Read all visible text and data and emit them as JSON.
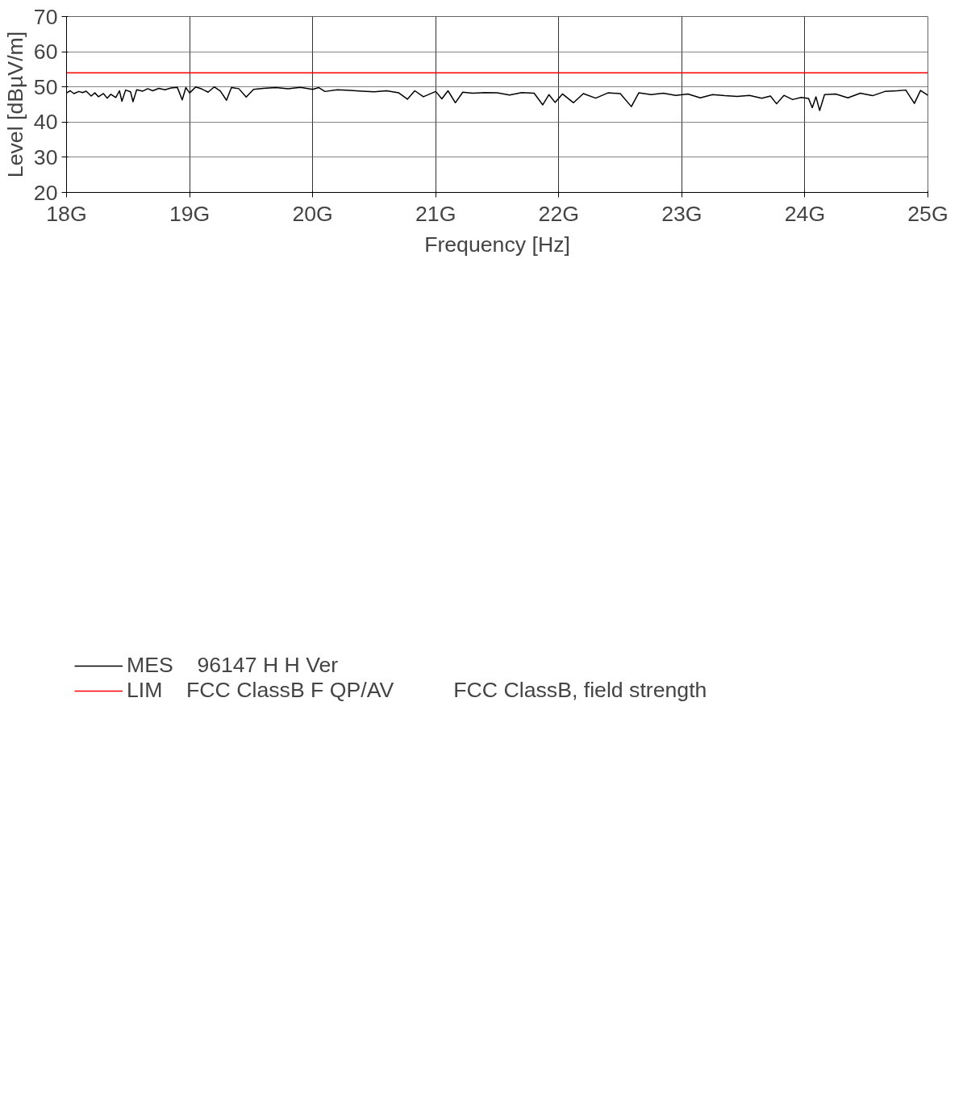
{
  "chart_data": {
    "type": "line",
    "ylabel": "Level [dBµV/m]",
    "xlabel": "Frequency [Hz]",
    "xlim": [
      18,
      25
    ],
    "ylim": [
      20,
      70
    ],
    "xticks": [
      {
        "value": 18,
        "label": "18G"
      },
      {
        "value": 19,
        "label": "19G"
      },
      {
        "value": 20,
        "label": "20G"
      },
      {
        "value": 21,
        "label": "21G"
      },
      {
        "value": 22,
        "label": "22G"
      },
      {
        "value": 23,
        "label": "23G"
      },
      {
        "value": 24,
        "label": "24G"
      },
      {
        "value": 25,
        "label": "25G"
      }
    ],
    "yticks": [
      20,
      30,
      40,
      50,
      60,
      70
    ],
    "grid": true,
    "legend": "bottom",
    "series": [
      {
        "name": "MES    96147 H H Ver",
        "color": "#000000",
        "x": [
          18.0,
          18.03,
          18.06,
          18.1,
          18.13,
          18.16,
          18.2,
          18.23,
          18.26,
          18.3,
          18.33,
          18.36,
          18.4,
          18.43,
          18.45,
          18.48,
          18.52,
          18.54,
          18.57,
          18.62,
          18.66,
          18.7,
          18.75,
          18.8,
          18.85,
          18.9,
          18.94,
          18.97,
          19.0,
          19.05,
          19.1,
          19.15,
          19.2,
          19.25,
          19.3,
          19.34,
          19.4,
          19.46,
          19.52,
          19.6,
          19.7,
          19.8,
          19.9,
          20.0,
          20.05,
          20.1,
          20.2,
          20.3,
          20.4,
          20.5,
          20.6,
          20.7,
          20.77,
          20.83,
          20.9,
          21.0,
          21.05,
          21.1,
          21.16,
          21.22,
          21.3,
          21.4,
          21.5,
          21.6,
          21.7,
          21.8,
          21.87,
          21.92,
          21.97,
          22.03,
          22.12,
          22.2,
          22.3,
          22.4,
          22.5,
          22.59,
          22.65,
          22.75,
          22.85,
          22.95,
          23.05,
          23.15,
          23.25,
          23.35,
          23.45,
          23.55,
          23.65,
          23.72,
          23.77,
          23.83,
          23.9,
          23.97,
          24.03,
          24.06,
          24.09,
          24.12,
          24.16,
          24.25,
          24.35,
          24.45,
          24.55,
          24.65,
          24.75,
          24.82,
          24.89,
          24.94,
          25.0
        ],
        "values": [
          48.3,
          48.9,
          48.1,
          48.7,
          48.4,
          48.8,
          47.4,
          48.3,
          47.2,
          48.1,
          46.8,
          47.9,
          47.0,
          48.9,
          45.9,
          49.1,
          48.6,
          45.8,
          49.2,
          48.8,
          49.5,
          48.9,
          49.6,
          49.2,
          49.7,
          49.9,
          46.3,
          49.8,
          48.3,
          50.0,
          49.4,
          48.5,
          50.0,
          48.8,
          46.2,
          49.8,
          49.5,
          47.1,
          49.3,
          49.6,
          49.8,
          49.5,
          49.9,
          49.3,
          49.8,
          48.7,
          49.2,
          49.0,
          48.8,
          48.6,
          48.9,
          48.3,
          46.5,
          48.9,
          47.2,
          48.7,
          46.6,
          48.9,
          45.5,
          48.5,
          48.2,
          48.4,
          48.3,
          47.7,
          48.4,
          48.2,
          44.9,
          47.8,
          45.6,
          48.0,
          45.5,
          48.1,
          46.8,
          48.3,
          48.1,
          44.4,
          48.3,
          47.8,
          48.2,
          47.6,
          48.0,
          46.9,
          47.8,
          47.5,
          47.3,
          47.6,
          46.8,
          47.4,
          45.2,
          47.6,
          46.4,
          47.0,
          46.7,
          44.1,
          47.2,
          43.3,
          47.8,
          48.0,
          46.9,
          48.2,
          47.5,
          48.7,
          48.9,
          49.1,
          45.3,
          49.0,
          47.6
        ]
      },
      {
        "name": "LIM    FCC ClassB F QP/AV          FCC ClassB, field strength",
        "color": "#ff0000",
        "x": [
          18,
          25
        ],
        "values": [
          54,
          54
        ]
      }
    ]
  }
}
